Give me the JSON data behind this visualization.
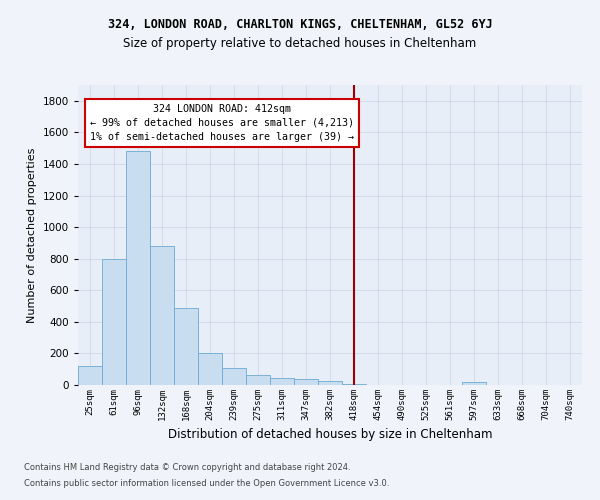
{
  "title1": "324, LONDON ROAD, CHARLTON KINGS, CHELTENHAM, GL52 6YJ",
  "title2": "Size of property relative to detached houses in Cheltenham",
  "xlabel": "Distribution of detached houses by size in Cheltenham",
  "ylabel": "Number of detached properties",
  "footer1": "Contains HM Land Registry data © Crown copyright and database right 2024.",
  "footer2": "Contains public sector information licensed under the Open Government Licence v3.0.",
  "bar_color": "#c8ddf0",
  "bar_edge_color": "#6aaad4",
  "grid_color": "#d0d8e8",
  "background_color": "#e8eef8",
  "fig_background": "#f0f4fa",
  "x_labels": [
    "25sqm",
    "61sqm",
    "96sqm",
    "132sqm",
    "168sqm",
    "204sqm",
    "239sqm",
    "275sqm",
    "311sqm",
    "347sqm",
    "382sqm",
    "418sqm",
    "454sqm",
    "490sqm",
    "525sqm",
    "561sqm",
    "597sqm",
    "633sqm",
    "668sqm",
    "704sqm",
    "740sqm"
  ],
  "bar_heights": [
    120,
    800,
    1480,
    880,
    490,
    205,
    105,
    65,
    45,
    35,
    25,
    5,
    2,
    1,
    0,
    0,
    20,
    0,
    0,
    0,
    0
  ],
  "ylim": [
    0,
    1900
  ],
  "yticks": [
    0,
    200,
    400,
    600,
    800,
    1000,
    1200,
    1400,
    1600,
    1800
  ],
  "red_line_index": 11,
  "annotation_title": "324 LONDON ROAD: 412sqm",
  "annotation_line1": "← 99% of detached houses are smaller (4,213)",
  "annotation_line2": "1% of semi-detached houses are larger (39) →",
  "annotation_box_color": "#ffffff",
  "annotation_border_color": "#cc0000",
  "red_line_color": "#990000",
  "title1_fontsize": 8.5,
  "title2_fontsize": 8.5,
  "ylabel_fontsize": 8,
  "xlabel_fontsize": 8.5,
  "xtick_fontsize": 6.5,
  "ytick_fontsize": 7.5,
  "footer_fontsize": 6.0
}
